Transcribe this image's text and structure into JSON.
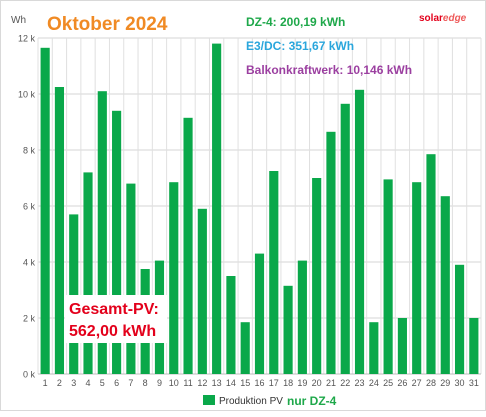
{
  "title": "Oktober 2024",
  "y_unit": "Wh",
  "brand": {
    "solar": "solar",
    "edge": "edge"
  },
  "stats": {
    "dz4": "DZ-4: 200,19 kWh",
    "e3dc": "E3/DC: 351,67 kWh",
    "balkon": "Balkonkraftwerk: 10,146 kWh"
  },
  "total": {
    "line1": "Gesamt-PV:",
    "line2": "562,00 kWh"
  },
  "legend": {
    "series": "Produktion PV",
    "note": "nur DZ-4"
  },
  "colors": {
    "title": "#f08a24",
    "dz4": "#1ea84a",
    "e3dc": "#2aa6dc",
    "balkon": "#9b3fa0",
    "total_text": "#e3001b",
    "bar": "#0aa84a"
  },
  "chart_data": {
    "type": "bar",
    "categories": [
      "1",
      "2",
      "3",
      "4",
      "5",
      "6",
      "7",
      "8",
      "9",
      "10",
      "11",
      "12",
      "13",
      "14",
      "15",
      "16",
      "17",
      "18",
      "19",
      "20",
      "21",
      "22",
      "23",
      "24",
      "25",
      "26",
      "27",
      "28",
      "29",
      "30",
      "31"
    ],
    "series": [
      {
        "name": "Produktion PV",
        "values": [
          11650,
          10250,
          5700,
          7200,
          10100,
          9400,
          6800,
          3750,
          4050,
          6850,
          9150,
          5900,
          11800,
          3500,
          1850,
          4300,
          7250,
          3150,
          4050,
          7000,
          8650,
          9650,
          10150,
          1850,
          6950,
          2000,
          6850,
          7850,
          6350,
          3900,
          2000
        ]
      }
    ],
    "ylim": [
      0,
      12000
    ],
    "yticks": [
      0,
      2000,
      4000,
      6000,
      8000,
      10000,
      12000
    ],
    "ytick_labels": [
      "0 k",
      "2 k",
      "4 k",
      "6 k",
      "8 k",
      "10 k",
      "12 k"
    ],
    "ylabel": "Wh",
    "grid": true,
    "legend_position": "bottom"
  }
}
